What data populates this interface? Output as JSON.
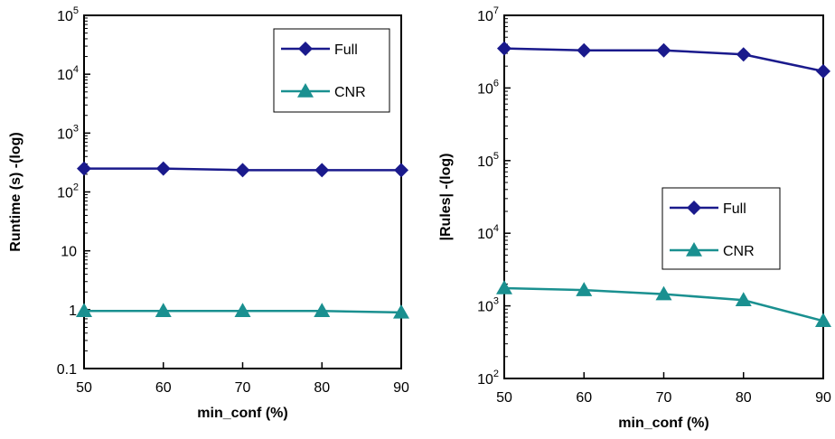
{
  "colors": {
    "full": "#1a1a8c",
    "cnr": "#1a9090",
    "axis": "#000000"
  },
  "chart_data": [
    {
      "type": "line",
      "x": [
        50,
        60,
        70,
        80,
        90
      ],
      "xlabel": "min_conf (%)",
      "ylabel": "Runtime (s) -(log)",
      "xlim": [
        50,
        90
      ],
      "ylim": [
        0.1,
        100000
      ],
      "yscale": "log",
      "xticks": [
        "50",
        "60",
        "70",
        "80",
        "90"
      ],
      "yticks": [
        {
          "value": 0.1,
          "label": "0.1"
        },
        {
          "value": 1,
          "label": "1"
        },
        {
          "value": 10,
          "label": "10"
        },
        {
          "value": 100,
          "base": "10",
          "exp": "2"
        },
        {
          "value": 1000,
          "base": "10",
          "exp": "3"
        },
        {
          "value": 10000,
          "base": "10",
          "exp": "4"
        },
        {
          "value": 100000,
          "base": "10",
          "exp": "5"
        }
      ],
      "legend_position": "top-right",
      "series": [
        {
          "name": "Full",
          "marker": "diamond",
          "color": "#1a1a8c",
          "values": [
            250,
            250,
            235,
            235,
            235
          ]
        },
        {
          "name": "CNR",
          "marker": "triangle",
          "color": "#1a9090",
          "values": [
            0.95,
            0.95,
            0.95,
            0.95,
            0.9
          ]
        }
      ]
    },
    {
      "type": "line",
      "x": [
        50,
        60,
        70,
        80,
        90
      ],
      "xlabel": "min_conf (%)",
      "ylabel": "|Rules| -(log)",
      "xlim": [
        50,
        90
      ],
      "ylim": [
        100,
        10000000
      ],
      "yscale": "log",
      "xticks": [
        "50",
        "60",
        "70",
        "80",
        "90"
      ],
      "yticks": [
        {
          "value": 100,
          "base": "10",
          "exp": "2"
        },
        {
          "value": 1000,
          "base": "10",
          "exp": "3"
        },
        {
          "value": 10000,
          "base": "10",
          "exp": "4"
        },
        {
          "value": 100000,
          "base": "10",
          "exp": "5"
        },
        {
          "value": 1000000,
          "base": "10",
          "exp": "6"
        },
        {
          "value": 10000000,
          "base": "10",
          "exp": "7"
        }
      ],
      "legend_position": "center-right",
      "series": [
        {
          "name": "Full",
          "marker": "diamond",
          "color": "#1a1a8c",
          "values": [
            3500000,
            3300000,
            3300000,
            2900000,
            1700000
          ]
        },
        {
          "name": "CNR",
          "marker": "triangle",
          "color": "#1a9090",
          "values": [
            1750,
            1650,
            1450,
            1200,
            620
          ]
        }
      ]
    }
  ]
}
